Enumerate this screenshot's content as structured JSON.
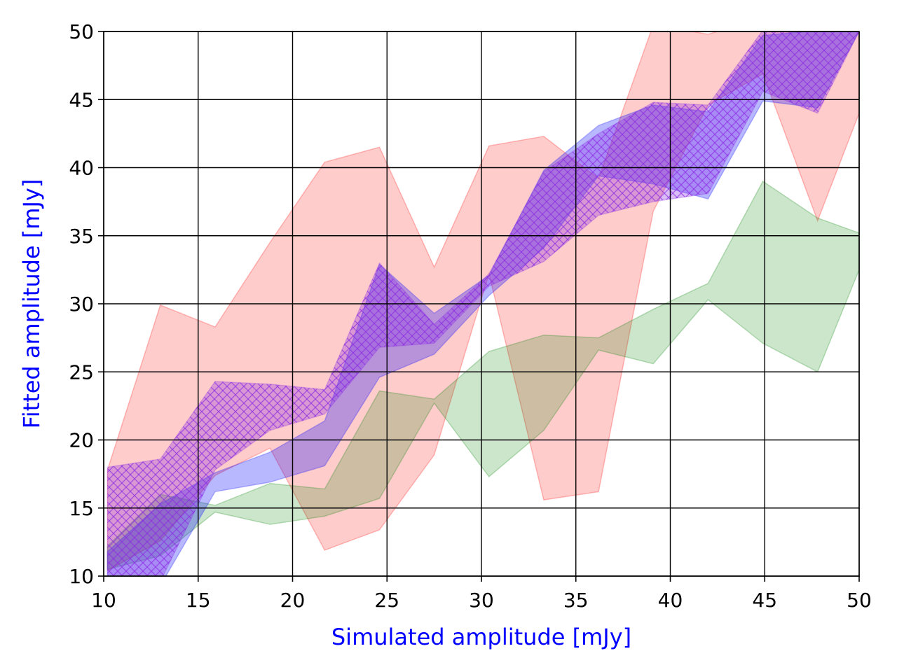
{
  "chart_data": {
    "type": "area",
    "title": "",
    "xlabel": "Simulated amplitude [mJy]",
    "ylabel": "Fitted amplitude [mJy]",
    "xlim": [
      10,
      50
    ],
    "ylim": [
      10,
      50
    ],
    "xticks": [
      "10",
      "15",
      "20",
      "25",
      "30",
      "35",
      "40",
      "45",
      "50"
    ],
    "yticks": [
      "10",
      "15",
      "20",
      "25",
      "30",
      "35",
      "40",
      "45",
      "50"
    ],
    "grid": true,
    "legend": "none",
    "colors": {
      "axis_label": "#0000ff",
      "grid": "#000000",
      "red_band": "#ff0000",
      "green_band": "#008000",
      "blue_band": "#0000ff",
      "purple_band": "#8a2be2"
    },
    "series": [
      {
        "color": "#ff0000",
        "opacity": 0.2,
        "hatch": false,
        "x": [
          10.2,
          13.0,
          15.9,
          18.8,
          21.7,
          24.6,
          27.5,
          30.4,
          33.3,
          36.2,
          39.1,
          42.0,
          44.9,
          47.8,
          50.0
        ],
        "upper": [
          17.8,
          29.9,
          28.3,
          34.5,
          40.4,
          41.5,
          32.7,
          41.6,
          42.3,
          39.2,
          50.5,
          49.8,
          51.0,
          50.3,
          50.0
        ],
        "lower": [
          10.4,
          12.6,
          17.4,
          19.4,
          11.9,
          13.4,
          18.9,
          32.2,
          15.6,
          16.2,
          36.8,
          44.6,
          46.9,
          36.1,
          44.0
        ]
      },
      {
        "color": "#008000",
        "opacity": 0.2,
        "hatch": false,
        "x": [
          10.2,
          13.0,
          15.9,
          18.8,
          21.7,
          24.6,
          27.5,
          30.4,
          33.3,
          36.2,
          39.1,
          42.0,
          44.9,
          47.8,
          50.0
        ],
        "upper": [
          12.2,
          16.0,
          15.2,
          16.8,
          16.4,
          23.6,
          23.0,
          26.5,
          27.7,
          27.5,
          29.6,
          31.5,
          39.0,
          36.3,
          35.2
        ],
        "lower": [
          10.5,
          11.5,
          14.7,
          13.8,
          14.4,
          15.7,
          22.7,
          17.3,
          20.7,
          26.6,
          25.6,
          30.3,
          27.1,
          25.0,
          32.5
        ]
      },
      {
        "color": "#0000ff",
        "opacity": 0.28,
        "hatch": false,
        "x": [
          10.2,
          13.0,
          15.9,
          18.8,
          21.7,
          24.6,
          27.5,
          30.4,
          33.3,
          36.2,
          39.1,
          42.0,
          44.9,
          47.8,
          50.0
        ],
        "upper": [
          11.8,
          15.3,
          17.6,
          19.1,
          21.4,
          32.9,
          29.3,
          32.1,
          39.8,
          43.1,
          44.6,
          44.1,
          49.7,
          50.1,
          50.2
        ],
        "lower": [
          10.0,
          9.3,
          16.2,
          16.9,
          18.1,
          24.6,
          26.3,
          30.6,
          34.1,
          39.4,
          38.8,
          37.7,
          44.9,
          44.4,
          50.0
        ]
      },
      {
        "color": "#8a2be2",
        "opacity": 0.32,
        "hatch": true,
        "x": [
          10.2,
          13.0,
          15.9,
          18.8,
          21.7,
          24.6,
          27.5,
          30.4,
          33.3,
          36.2,
          39.1,
          42.0,
          44.9,
          47.8,
          50.0
        ],
        "upper": [
          18.0,
          18.6,
          24.3,
          24.1,
          23.7,
          33.0,
          28.5,
          32.2,
          39.7,
          42.5,
          44.8,
          44.6,
          50.1,
          50.2,
          50.2
        ],
        "lower": [
          10.0,
          9.6,
          17.8,
          20.7,
          21.9,
          26.8,
          27.1,
          31.3,
          33.1,
          36.5,
          37.5,
          38.1,
          45.6,
          44.0,
          50.0
        ]
      }
    ]
  }
}
